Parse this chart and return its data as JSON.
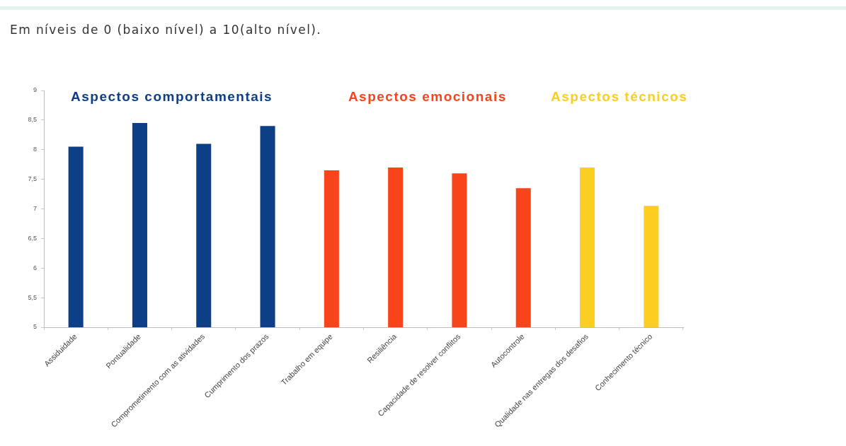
{
  "chart_data": {
    "type": "bar",
    "title": "Em níveis de 0 (baixo nível) a 10(alto nível).",
    "categories": [
      "Assiduidade",
      "Pontualidade",
      "Comprometimento com as atividades",
      "Cumprimento dos prazos",
      "Trabalho em equipe",
      "Resiliência",
      "Capacidade de resolver conflitos",
      "Autocontrole",
      "Qualidade nas entregas dos desafios",
      "Conhecimento técnico"
    ],
    "series": [
      {
        "name": "Aspectos comportamentais",
        "color": "#0c3f86",
        "values": [
          8.05,
          8.45,
          8.1,
          8.4,
          null,
          null,
          null,
          null,
          null,
          null
        ]
      },
      {
        "name": "Aspectos emocionais",
        "color": "#f7441b",
        "values": [
          null,
          null,
          null,
          null,
          7.65,
          7.7,
          7.6,
          7.35,
          null,
          null
        ]
      },
      {
        "name": "Aspectos técnicos",
        "color": "#fcce22",
        "values": [
          null,
          null,
          null,
          null,
          null,
          null,
          null,
          null,
          7.7,
          7.05
        ]
      }
    ],
    "ylim": [
      5,
      9
    ],
    "yticks": [
      5,
      {
        "value": 5.5,
        "label": "5,5"
      },
      6,
      {
        "value": 6.5,
        "label": "6,5"
      },
      7,
      {
        "value": 7.5,
        "label": "7,5"
      },
      8,
      {
        "value": 8.5,
        "label": "8,5"
      },
      9
    ],
    "grid": false
  }
}
